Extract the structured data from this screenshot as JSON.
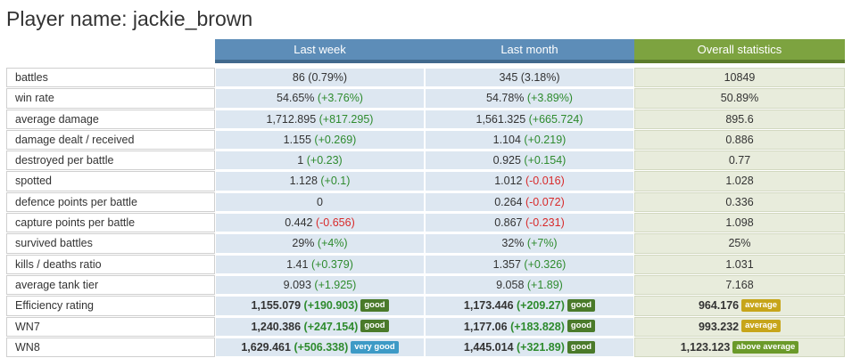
{
  "header": {
    "prefix": "Player name: ",
    "player": "jackie_brown"
  },
  "columns": {
    "last_week": "Last week",
    "last_month": "Last month",
    "overall": "Overall statistics"
  },
  "colors": {
    "header_blue": "#5d8db8",
    "header_green": "#7da340",
    "positive": "#2e8b2e",
    "negative": "#d82a2a",
    "badge_good": "#4a7a2a",
    "badge_average": "#c7a51a",
    "badge_very_good": "#3d9ac6",
    "badge_above_average": "#6b9a2a"
  },
  "rows": [
    {
      "label": "battles",
      "lw": {
        "v": "86 (0.79%)"
      },
      "lm": {
        "v": "345 (3.18%)"
      },
      "os": {
        "v": "10849"
      }
    },
    {
      "label": "win rate",
      "lw": {
        "v": "54.65%",
        "d": "(+3.76%)",
        "dc": "pos"
      },
      "lm": {
        "v": "54.78%",
        "d": "(+3.89%)",
        "dc": "pos"
      },
      "os": {
        "v": "50.89%"
      }
    },
    {
      "label": "average damage",
      "lw": {
        "v": "1,712.895",
        "d": "(+817.295)",
        "dc": "pos"
      },
      "lm": {
        "v": "1,561.325",
        "d": "(+665.724)",
        "dc": "pos"
      },
      "os": {
        "v": "895.6"
      }
    },
    {
      "label": "damage dealt / received",
      "lw": {
        "v": "1.155",
        "d": "(+0.269)",
        "dc": "pos"
      },
      "lm": {
        "v": "1.104",
        "d": "(+0.219)",
        "dc": "pos"
      },
      "os": {
        "v": "0.886"
      }
    },
    {
      "label": "destroyed per battle",
      "lw": {
        "v": "1",
        "d": "(+0.23)",
        "dc": "pos"
      },
      "lm": {
        "v": "0.925",
        "d": "(+0.154)",
        "dc": "pos"
      },
      "os": {
        "v": "0.77"
      }
    },
    {
      "label": "spotted",
      "lw": {
        "v": "1.128",
        "d": "(+0.1)",
        "dc": "pos"
      },
      "lm": {
        "v": "1.012",
        "d": "(-0.016)",
        "dc": "neg"
      },
      "os": {
        "v": "1.028"
      }
    },
    {
      "label": "defence points per battle",
      "lw": {
        "v": "0"
      },
      "lm": {
        "v": "0.264",
        "d": "(-0.072)",
        "dc": "neg"
      },
      "os": {
        "v": "0.336"
      }
    },
    {
      "label": "capture points per battle",
      "lw": {
        "v": "0.442",
        "d": "(-0.656)",
        "dc": "neg"
      },
      "lm": {
        "v": "0.867",
        "d": "(-0.231)",
        "dc": "neg"
      },
      "os": {
        "v": "1.098"
      }
    },
    {
      "label": "survived battles",
      "lw": {
        "v": "29%",
        "d": "(+4%)",
        "dc": "pos"
      },
      "lm": {
        "v": "32%",
        "d": "(+7%)",
        "dc": "pos"
      },
      "os": {
        "v": "25%"
      }
    },
    {
      "label": "kills / deaths ratio",
      "lw": {
        "v": "1.41",
        "d": "(+0.379)",
        "dc": "pos"
      },
      "lm": {
        "v": "1.357",
        "d": "(+0.326)",
        "dc": "pos"
      },
      "os": {
        "v": "1.031"
      }
    },
    {
      "label": "average tank tier",
      "lw": {
        "v": "9.093",
        "d": "(+1.925)",
        "dc": "pos"
      },
      "lm": {
        "v": "9.058",
        "d": "(+1.89)",
        "dc": "pos"
      },
      "os": {
        "v": "7.168"
      }
    },
    {
      "label": "Efficiency rating",
      "bold": true,
      "lw": {
        "v": "1,155.079",
        "d": "(+190.903)",
        "dc": "pos",
        "badge": "good",
        "bc": "good"
      },
      "lm": {
        "v": "1,173.446",
        "d": "(+209.27)",
        "dc": "pos",
        "badge": "good",
        "bc": "good"
      },
      "os": {
        "v": "964.176",
        "badge": "average",
        "bc": "average"
      }
    },
    {
      "label": "WN7",
      "bold": true,
      "lw": {
        "v": "1,240.386",
        "d": "(+247.154)",
        "dc": "pos",
        "badge": "good",
        "bc": "good"
      },
      "lm": {
        "v": "1,177.06",
        "d": "(+183.828)",
        "dc": "pos",
        "badge": "good",
        "bc": "good"
      },
      "os": {
        "v": "993.232",
        "badge": "average",
        "bc": "average"
      }
    },
    {
      "label": "WN8",
      "bold": true,
      "lw": {
        "v": "1,629.461",
        "d": "(+506.338)",
        "dc": "pos",
        "badge": "very good",
        "bc": "verygood"
      },
      "lm": {
        "v": "1,445.014",
        "d": "(+321.89)",
        "dc": "pos",
        "badge": "good",
        "bc": "good"
      },
      "os": {
        "v": "1,123.123",
        "badge": "above average",
        "bc": "aboveaverage"
      }
    }
  ]
}
